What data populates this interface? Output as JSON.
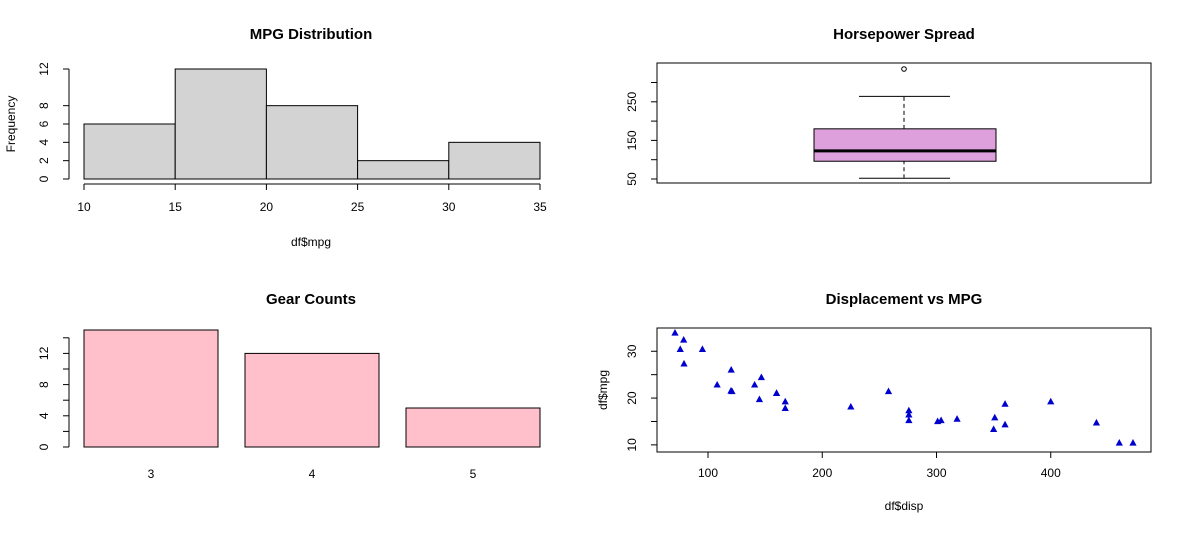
{
  "chart_data": [
    {
      "type": "bar",
      "subtype": "histogram",
      "title": "MPG Distribution",
      "xlabel": "df$mpg",
      "ylabel": "Frequency",
      "bins": [
        [
          10,
          15
        ],
        [
          15,
          20
        ],
        [
          20,
          25
        ],
        [
          25,
          30
        ],
        [
          30,
          35
        ]
      ],
      "values": [
        6,
        12,
        8,
        2,
        4
      ],
      "xticks": [
        "10",
        "15",
        "20",
        "25",
        "30",
        "35"
      ],
      "yticks": [
        "0",
        "2",
        "4",
        "6",
        "8",
        "12"
      ],
      "xlim": [
        10,
        35
      ],
      "ylim": [
        0,
        12
      ],
      "colors": {
        "fill": "#d3d3d3",
        "stroke": "#000000"
      }
    },
    {
      "type": "box",
      "title": "Horsepower Spread",
      "stats": {
        "lower_whisker": 52,
        "q1": 96,
        "median": 123,
        "q3": 180,
        "upper_whisker": 264
      },
      "outliers": [
        335
      ],
      "yticks": [
        "50",
        "150",
        "250"
      ],
      "ylim": [
        50,
        335
      ],
      "colors": {
        "fill": "#dda0dd",
        "stroke": "#000000"
      }
    },
    {
      "type": "bar",
      "title": "Gear Counts",
      "categories": [
        "3",
        "4",
        "5"
      ],
      "values": [
        15,
        12,
        5
      ],
      "yticks": [
        "0",
        "4",
        "8",
        "12"
      ],
      "ylim": [
        0,
        15
      ],
      "colors": {
        "fill": "#ffc0cb",
        "stroke": "#000000"
      }
    },
    {
      "type": "scatter",
      "title": "Displacement vs MPG",
      "xlabel": "df$disp",
      "ylabel": "df$mpg",
      "xticks": [
        "100",
        "200",
        "300",
        "400"
      ],
      "yticks": [
        "10",
        "20",
        "30"
      ],
      "xlim": [
        71.1,
        472
      ],
      "ylim": [
        10.4,
        33.9
      ],
      "marker": "triangle",
      "colors": {
        "point": "#0000cd"
      },
      "points": [
        [
          160,
          21
        ],
        [
          160,
          21
        ],
        [
          108,
          22.8
        ],
        [
          258,
          21.4
        ],
        [
          360,
          18.7
        ],
        [
          225,
          18.1
        ],
        [
          360,
          14.3
        ],
        [
          146.7,
          24.4
        ],
        [
          140.8,
          22.8
        ],
        [
          167.6,
          19.2
        ],
        [
          167.6,
          17.8
        ],
        [
          275.8,
          16.4
        ],
        [
          275.8,
          17.3
        ],
        [
          275.8,
          15.2
        ],
        [
          472,
          10.4
        ],
        [
          460,
          10.4
        ],
        [
          440,
          14.7
        ],
        [
          78.7,
          32.4
        ],
        [
          75.7,
          30.4
        ],
        [
          71.1,
          33.9
        ],
        [
          120.1,
          21.5
        ],
        [
          318,
          15.5
        ],
        [
          304,
          15.2
        ],
        [
          350,
          13.3
        ],
        [
          400,
          19.2
        ],
        [
          79,
          27.3
        ],
        [
          120.3,
          26
        ],
        [
          95.1,
          30.4
        ],
        [
          351,
          15.8
        ],
        [
          145,
          19.7
        ],
        [
          301,
          15
        ],
        [
          121,
          21.4
        ]
      ]
    }
  ]
}
